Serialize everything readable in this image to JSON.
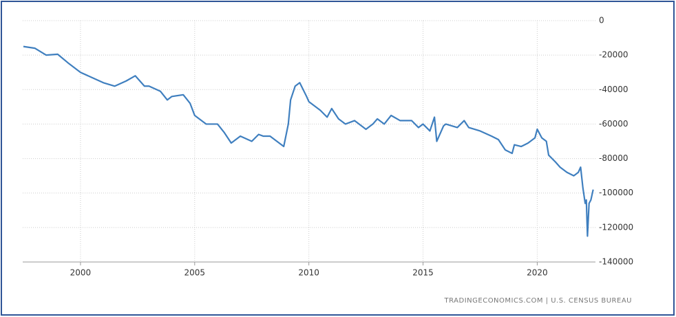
{
  "chart_data": {
    "type": "line",
    "source": "TRADINGECONOMICS.COM | U.S. CENSUS BUREAU",
    "series": [
      {
        "color": "#3f7fbf",
        "x": [
          1997.5,
          1998.0,
          1998.5,
          1999.0,
          1999.5,
          2000.0,
          2000.5,
          2001.0,
          2001.5,
          2002.0,
          2002.4,
          2002.8,
          2003.0,
          2003.5,
          2003.8,
          2004.0,
          2004.5,
          2004.8,
          2005.0,
          2005.5,
          2006.0,
          2006.3,
          2006.6,
          2007.0,
          2007.5,
          2007.8,
          2008.0,
          2008.3,
          2008.6,
          2008.9,
          2009.1,
          2009.2,
          2009.4,
          2009.6,
          2009.9,
          2010.0,
          2010.5,
          2010.8,
          2011.0,
          2011.3,
          2011.6,
          2012.0,
          2012.5,
          2012.8,
          2013.0,
          2013.3,
          2013.6,
          2014.0,
          2014.5,
          2014.8,
          2015.0,
          2015.3,
          2015.5,
          2015.6,
          2015.9,
          2016.0,
          2016.5,
          2016.8,
          2017.0,
          2017.5,
          2018.0,
          2018.3,
          2018.6,
          2018.9,
          2019.0,
          2019.3,
          2019.6,
          2019.9,
          2020.0,
          2020.2,
          2020.4,
          2020.5,
          2020.8,
          2021.0,
          2021.3,
          2021.6,
          2021.8,
          2021.9,
          2022.0,
          2022.1,
          2022.15,
          2022.2,
          2022.27,
          2022.35,
          2022.45
        ],
        "values": [
          -15000,
          -16000,
          -20000,
          -19500,
          -25000,
          -30000,
          -33000,
          -36000,
          -38000,
          -35000,
          -32000,
          -38000,
          -38000,
          -41000,
          -46000,
          -44000,
          -43000,
          -48000,
          -55000,
          -60000,
          -60000,
          -65000,
          -71000,
          -67000,
          -70000,
          -66000,
          -67000,
          -67000,
          -70000,
          -73000,
          -60000,
          -46000,
          -38000,
          -36000,
          -44000,
          -47000,
          -52000,
          -56000,
          -51000,
          -57000,
          -60000,
          -58000,
          -63000,
          -60000,
          -57000,
          -60000,
          -55000,
          -58000,
          -58000,
          -62000,
          -60000,
          -64000,
          -56000,
          -70000,
          -61000,
          -60000,
          -62000,
          -58000,
          -62000,
          -64000,
          -67000,
          -69000,
          -75000,
          -77000,
          -72000,
          -73000,
          -71000,
          -68000,
          -63000,
          -68000,
          -70000,
          -78000,
          -82000,
          -85000,
          -88000,
          -90000,
          -88000,
          -85000,
          -97000,
          -106000,
          -104000,
          -125000,
          -106000,
          -104000,
          -98000
        ]
      }
    ],
    "xlim": [
      1997.47,
      2022.55
    ],
    "xticks": [
      2000,
      2005,
      2010,
      2015,
      2020
    ],
    "ylim": [
      -140000,
      0
    ],
    "yticks": [
      0,
      -20000,
      -40000,
      -60000,
      -80000,
      -100000,
      -120000,
      -140000
    ],
    "grid": true
  }
}
